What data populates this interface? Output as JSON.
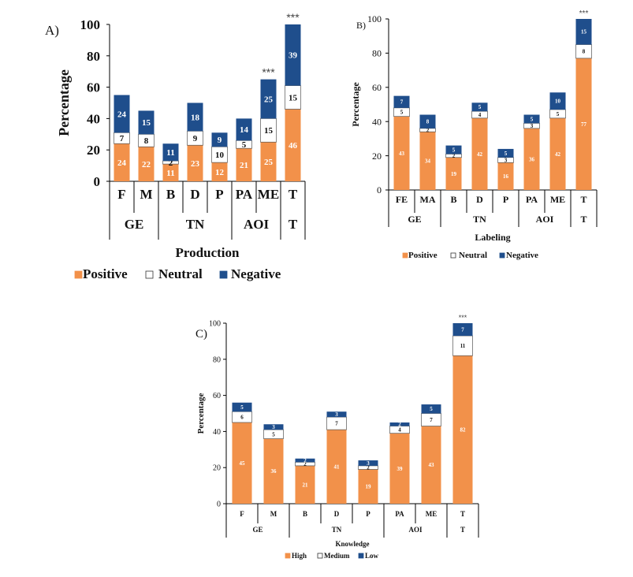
{
  "chart_data": [
    {
      "panel": "A)",
      "type": "bar",
      "stacked": true,
      "title": "",
      "xlabel": "Production",
      "ylabel": "Percentage",
      "ylim": [
        0,
        100
      ],
      "yticks": [
        "0",
        "20",
        "40",
        "60",
        "80",
        "100"
      ],
      "categories": [
        "F",
        "M",
        "B",
        "D",
        "P",
        "PA",
        "ME",
        "T"
      ],
      "groups": [
        {
          "label": "GE",
          "categories": [
            "F",
            "M"
          ]
        },
        {
          "label": "TN",
          "categories": [
            "B",
            "D",
            "P"
          ]
        },
        {
          "label": "AOI",
          "categories": [
            "PA",
            "ME"
          ]
        },
        {
          "label": "T",
          "categories": [
            "T"
          ]
        }
      ],
      "significance": [
        {
          "category": "ME",
          "label": "***"
        },
        {
          "category": "T",
          "label": "***"
        }
      ],
      "series": [
        {
          "name": "Positive",
          "color": "#f2914a",
          "values": [
            24,
            22,
            11,
            23,
            12,
            21,
            25,
            46
          ]
        },
        {
          "name": "Neutral",
          "color": "#ffffff",
          "values": [
            7,
            8,
            2,
            9,
            10,
            5,
            15,
            15
          ]
        },
        {
          "name": "Negative",
          "color": "#1f4e8c",
          "values": [
            24,
            15,
            11,
            18,
            9,
            14,
            25,
            39
          ]
        }
      ]
    },
    {
      "panel": "B)",
      "type": "bar",
      "stacked": true,
      "title": "",
      "xlabel": "Labeling",
      "ylabel": "Percentage",
      "ylim": [
        0,
        100
      ],
      "yticks": [
        "0",
        "20",
        "40",
        "60",
        "80",
        "100"
      ],
      "categories": [
        "FE",
        "MA",
        "B",
        "D",
        "P",
        "PA",
        "ME",
        "T"
      ],
      "groups": [
        {
          "label": "GE",
          "categories": [
            "FE",
            "MA"
          ]
        },
        {
          "label": "TN",
          "categories": [
            "B",
            "D",
            "P"
          ]
        },
        {
          "label": "AOI",
          "categories": [
            "PA",
            "ME"
          ]
        },
        {
          "label": "T",
          "categories": [
            "T"
          ]
        }
      ],
      "significance": [
        {
          "category": "T",
          "label": "***"
        }
      ],
      "series": [
        {
          "name": "Positive",
          "color": "#f2914a",
          "values": [
            43,
            34,
            19,
            42,
            16,
            36,
            42,
            77
          ]
        },
        {
          "name": "Neutral",
          "color": "#ffffff",
          "values": [
            5,
            2,
            2,
            4,
            3,
            3,
            5,
            8
          ]
        },
        {
          "name": "Negative",
          "color": "#1f4e8c",
          "values": [
            7,
            8,
            5,
            5,
            5,
            5,
            10,
            15
          ]
        }
      ]
    },
    {
      "panel": "C)",
      "type": "bar",
      "stacked": true,
      "title": "",
      "xlabel": "Knowledge",
      "ylabel": "Percentage",
      "ylim": [
        0,
        100
      ],
      "yticks": [
        "0",
        "20",
        "40",
        "60",
        "80",
        "100"
      ],
      "categories": [
        "F",
        "M",
        "B",
        "D",
        "P",
        "PA",
        "ME",
        "T"
      ],
      "groups": [
        {
          "label": "GE",
          "categories": [
            "F",
            "M"
          ]
        },
        {
          "label": "TN",
          "categories": [
            "B",
            "D",
            "P"
          ]
        },
        {
          "label": "AOI",
          "categories": [
            "PA",
            "ME"
          ]
        },
        {
          "label": "T",
          "categories": [
            "T"
          ]
        }
      ],
      "significance": [
        {
          "category": "T",
          "label": "***"
        }
      ],
      "series": [
        {
          "name": "High",
          "color": "#f2914a",
          "values": [
            45,
            36,
            21,
            41,
            19,
            39,
            43,
            82
          ]
        },
        {
          "name": "Medium",
          "color": "#ffffff",
          "values": [
            6,
            5,
            2,
            7,
            2,
            4,
            7,
            11
          ]
        },
        {
          "name": "Low",
          "color": "#1f4e8c",
          "values": [
            5,
            3,
            2,
            3,
            3,
            2,
            5,
            7
          ]
        }
      ]
    }
  ]
}
